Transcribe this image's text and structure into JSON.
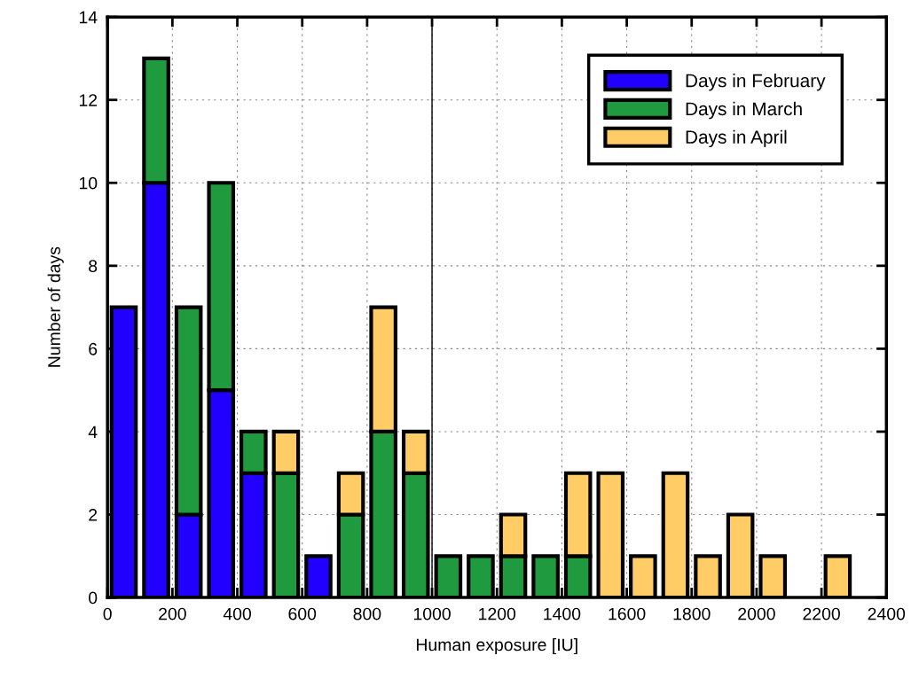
{
  "chart_data": {
    "type": "bar",
    "stacked": true,
    "xlabel": "Human exposure [IU]",
    "ylabel": "Number of days",
    "x": [
      50,
      150,
      250,
      350,
      450,
      550,
      650,
      750,
      850,
      950,
      1050,
      1150,
      1250,
      1350,
      1450,
      1550,
      1650,
      1750,
      1850,
      1950,
      2050,
      2150,
      2250
    ],
    "series": [
      {
        "name": "Days in February",
        "color": "#2200ff",
        "values": [
          7,
          10,
          2,
          5,
          3,
          0,
          1,
          0,
          0,
          0,
          0,
          0,
          0,
          0,
          0,
          0,
          0,
          0,
          0,
          0,
          0,
          0,
          0
        ]
      },
      {
        "name": "Days in March",
        "color": "#1f9a3f",
        "values": [
          0,
          3,
          5,
          5,
          1,
          3,
          0,
          2,
          4,
          3,
          1,
          1,
          1,
          1,
          1,
          0,
          0,
          0,
          0,
          0,
          0,
          0,
          0
        ]
      },
      {
        "name": "Days in April",
        "color": "#ffcc66",
        "values": [
          0,
          0,
          0,
          0,
          0,
          1,
          0,
          1,
          3,
          1,
          0,
          0,
          1,
          0,
          2,
          3,
          1,
          3,
          1,
          2,
          1,
          0,
          1
        ]
      }
    ],
    "xlim": [
      0,
      2400
    ],
    "xticks": [
      0,
      200,
      400,
      600,
      800,
      1000,
      1200,
      1400,
      1600,
      1800,
      2000,
      2200,
      2400
    ],
    "ylim": [
      0,
      14
    ],
    "yticks": [
      0,
      2,
      4,
      6,
      8,
      10,
      12,
      14
    ],
    "ref_lines": [
      {
        "axis": "x",
        "value": 1000,
        "color": "#000000",
        "line_style": "solid"
      }
    ],
    "grid": true,
    "legend": "top right"
  }
}
